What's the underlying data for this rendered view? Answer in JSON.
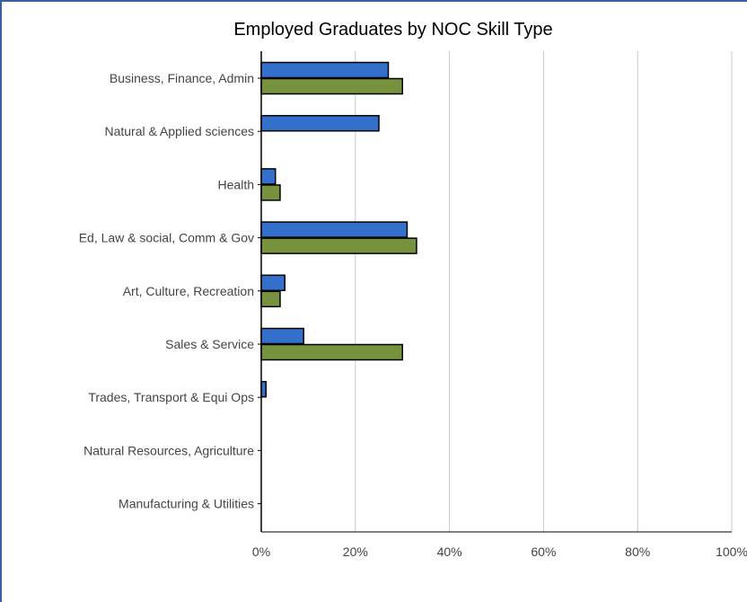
{
  "chart_data": {
    "type": "bar",
    "orientation": "horizontal",
    "title": "Employed Graduates by NOC Skill Type",
    "xlabel": "",
    "ylabel": "",
    "categories": [
      "Business, Finance, Admin",
      "Natural & Applied sciences",
      "Health",
      "Ed, Law & social, Comm & Gov",
      "Art, Culture, Recreation",
      "Sales & Service",
      "Trades, Transport & Equi Ops",
      "Natural Resources, Agriculture",
      "Manufacturing & Utilities"
    ],
    "series": [
      {
        "color": "#3370cc",
        "values": [
          27,
          25,
          3,
          31,
          5,
          9,
          1,
          0,
          0
        ]
      },
      {
        "color": "#76923c",
        "values": [
          30,
          0,
          4,
          33,
          4,
          30,
          0,
          0,
          0
        ]
      }
    ],
    "xlim": [
      0,
      100
    ],
    "x_tick_values": [
      0,
      20,
      40,
      60,
      80,
      100
    ],
    "x_tick_labels": [
      "0%",
      "20%",
      "40%",
      "60%",
      "80%",
      "100%"
    ],
    "grid": "vertical",
    "legend": "none"
  }
}
